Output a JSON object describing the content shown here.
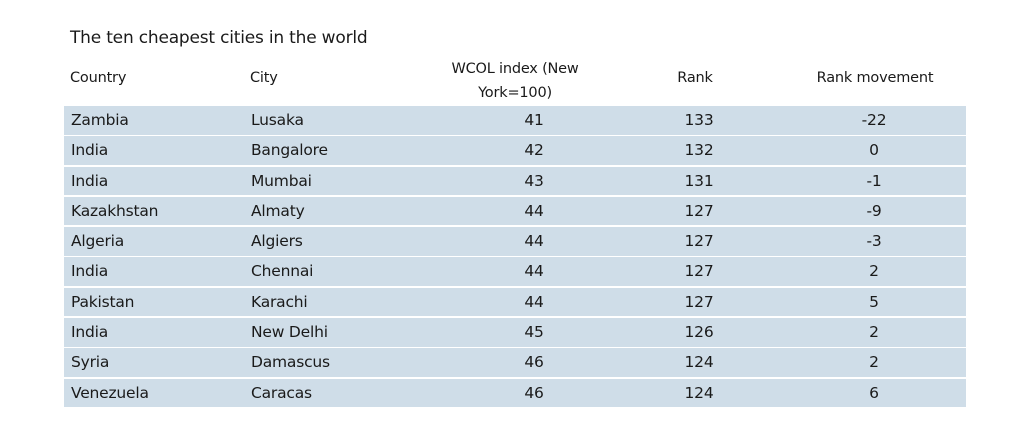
{
  "chart_data": {
    "type": "table",
    "title": "The ten cheapest cities in the world",
    "columns": [
      "Country",
      "City",
      "WCOL index (New York=100)",
      "Rank",
      "Rank movement"
    ],
    "rows": [
      {
        "country": "Zambia",
        "city": "Lusaka",
        "index": "41",
        "rank": "133",
        "movement": "-22"
      },
      {
        "country": "India",
        "city": "Bangalore",
        "index": "42",
        "rank": "132",
        "movement": "0"
      },
      {
        "country": "India",
        "city": "Mumbai",
        "index": "43",
        "rank": "131",
        "movement": "-1"
      },
      {
        "country": "Kazakhstan",
        "city": "Almaty",
        "index": "44",
        "rank": "127",
        "movement": "-9"
      },
      {
        "country": "Algeria",
        "city": "Algiers",
        "index": "44",
        "rank": "127",
        "movement": "-3"
      },
      {
        "country": "India",
        "city": "Chennai",
        "index": "44",
        "rank": "127",
        "movement": "2"
      },
      {
        "country": "Pakistan",
        "city": "Karachi",
        "index": "44",
        "rank": "127",
        "movement": "5"
      },
      {
        "country": "India",
        "city": "New Delhi",
        "index": "45",
        "rank": "126",
        "movement": "2"
      },
      {
        "country": "Syria",
        "city": "Damascus",
        "index": "46",
        "rank": "124",
        "movement": "2"
      },
      {
        "country": "Venezuela",
        "city": "Caracas",
        "index": "46",
        "rank": "124",
        "movement": "6"
      }
    ]
  },
  "header": {
    "index_line1": "WCOL index (New",
    "index_line2": "York=100)"
  },
  "colors": {
    "row_background": "#cfdde8",
    "text": "#1a1a1a"
  }
}
